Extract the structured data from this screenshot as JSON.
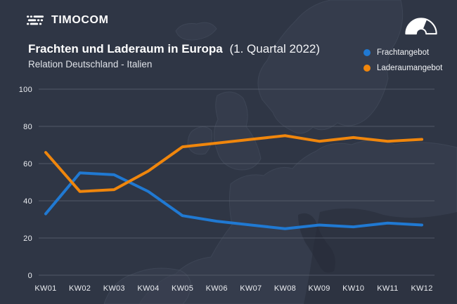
{
  "header": {
    "logo_text": "TIMOCOM",
    "logo_icon": "timocom-road-lines-icon",
    "barometer_icon": "gauge-icon"
  },
  "title": {
    "main": "Frachten und Laderaum in Europa",
    "period": "(1. Quartal 2022)",
    "subtitle": "Relation Deutschland - Italien"
  },
  "legend": [
    {
      "label": "Frachtangebot",
      "color": "#2079d2"
    },
    {
      "label": "Laderaumangebot",
      "color": "#f0860c"
    }
  ],
  "chart_data": {
    "type": "line",
    "title": "Frachten und Laderaum in Europa (1. Quartal 2022)",
    "subtitle": "Relation Deutschland - Italien",
    "categories": [
      "KW01",
      "KW02",
      "KW03",
      "KW04",
      "KW05",
      "KW06",
      "KW07",
      "KW08",
      "KW09",
      "KW10",
      "KW11",
      "KW12"
    ],
    "series": [
      {
        "name": "Frachtangebot",
        "color": "#2079d2",
        "values": [
          33,
          55,
          54,
          45,
          32,
          29,
          27,
          25,
          27,
          26,
          28,
          27
        ]
      },
      {
        "name": "Laderaumangebot",
        "color": "#f0860c",
        "values": [
          66,
          45,
          46,
          56,
          69,
          71,
          73,
          75,
          72,
          74,
          72,
          73
        ]
      }
    ],
    "xlabel": "",
    "ylabel": "",
    "ylim": [
      0,
      100
    ],
    "yticks": [
      0,
      20,
      40,
      60,
      80,
      100
    ],
    "grid": true,
    "legend_position": "top-right"
  },
  "colors": {
    "background": "#2f3645",
    "gridline": "#5d6473",
    "axis_text": "#eceef2",
    "title_text": "#ffffff",
    "map_land": "#3a4150",
    "map_border": "#475060",
    "map_shadow": "#262c38"
  }
}
